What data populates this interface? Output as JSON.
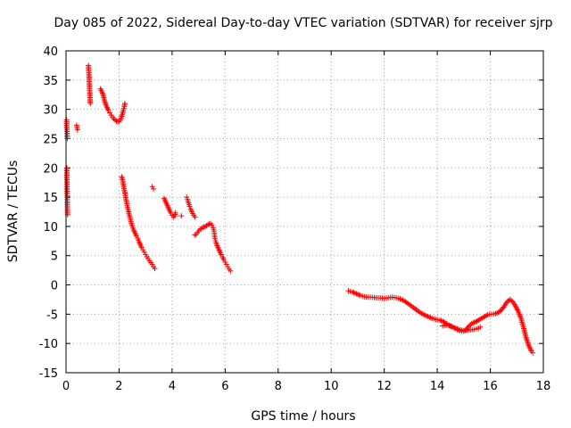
{
  "chart_data": {
    "type": "scatter",
    "title": "Day 085 of 2022, Sidereal Day-to-day VTEC variation (SDTVAR) for receiver sjrp",
    "xlabel": "GPS time / hours",
    "ylabel": "SDTVAR / TECUs",
    "xlim": [
      0,
      18
    ],
    "ylim": [
      -15,
      40
    ],
    "xticks": [
      0,
      2,
      4,
      6,
      8,
      10,
      12,
      14,
      16,
      18
    ],
    "yticks": [
      -15,
      -10,
      -5,
      0,
      5,
      10,
      15,
      20,
      25,
      30,
      35,
      40
    ],
    "grid": true,
    "marker": "plus",
    "marker_color": "#ff0000",
    "series": [
      {
        "name": "SDTVAR",
        "segments": [
          [
            [
              0.02,
              28.2
            ],
            [
              0.03,
              27.0
            ],
            [
              0.04,
              26.2
            ],
            [
              0.05,
              25.0
            ]
          ],
          [
            [
              0.03,
              20.0
            ],
            [
              0.03,
              18.5
            ],
            [
              0.04,
              17.0
            ],
            [
              0.04,
              15.5
            ],
            [
              0.05,
              14.3
            ],
            [
              0.05,
              13.2
            ],
            [
              0.06,
              12.0
            ]
          ],
          [
            [
              0.4,
              27.3
            ],
            [
              0.43,
              26.5
            ]
          ],
          [
            [
              0.85,
              37.5
            ],
            [
              0.86,
              36.5
            ],
            [
              0.87,
              35.5
            ],
            [
              0.88,
              34.5
            ],
            [
              0.89,
              33.5
            ],
            [
              0.9,
              32.5
            ],
            [
              0.91,
              31.5
            ],
            [
              0.92,
              31.0
            ]
          ],
          [
            [
              1.3,
              33.5
            ],
            [
              1.35,
              33.0
            ],
            [
              1.4,
              32.5
            ],
            [
              1.45,
              31.5
            ],
            [
              1.5,
              30.8
            ],
            [
              1.55,
              30.3
            ],
            [
              1.6,
              29.8
            ],
            [
              1.65,
              29.4
            ],
            [
              1.7,
              29.0
            ],
            [
              1.75,
              28.7
            ],
            [
              1.8,
              28.4
            ],
            [
              1.85,
              28.2
            ],
            [
              1.9,
              28.0
            ],
            [
              1.95,
              27.9
            ],
            [
              2.0,
              27.9
            ],
            [
              2.05,
              28.2
            ],
            [
              2.1,
              28.8
            ],
            [
              2.15,
              29.6
            ],
            [
              2.2,
              30.5
            ],
            [
              2.22,
              31.0
            ]
          ],
          [
            [
              2.1,
              18.5
            ],
            [
              2.13,
              18.0
            ],
            [
              2.16,
              17.2
            ],
            [
              2.2,
              16.2
            ],
            [
              2.24,
              15.2
            ],
            [
              2.28,
              14.2
            ],
            [
              2.32,
              13.3
            ],
            [
              2.36,
              12.5
            ],
            [
              2.4,
              11.7
            ],
            [
              2.45,
              10.8
            ],
            [
              2.5,
              10.0
            ],
            [
              2.55,
              9.4
            ],
            [
              2.6,
              8.9
            ],
            [
              2.65,
              8.4
            ],
            [
              2.7,
              8.0
            ],
            [
              2.75,
              7.4
            ],
            [
              2.8,
              6.9
            ],
            [
              2.85,
              6.4
            ],
            [
              2.9,
              6.0
            ],
            [
              2.95,
              5.6
            ],
            [
              3.0,
              5.2
            ],
            [
              3.05,
              4.8
            ],
            [
              3.1,
              4.5
            ],
            [
              3.15,
              4.1
            ],
            [
              3.2,
              3.8
            ],
            [
              3.25,
              3.5
            ],
            [
              3.3,
              3.1
            ],
            [
              3.35,
              2.8
            ]
          ],
          [
            [
              3.25,
              16.8
            ],
            [
              3.3,
              16.4
            ]
          ],
          [
            [
              3.7,
              14.8
            ],
            [
              3.75,
              14.3
            ],
            [
              3.8,
              13.8
            ],
            [
              3.85,
              13.3
            ],
            [
              3.9,
              12.8
            ],
            [
              3.95,
              12.3
            ],
            [
              4.0,
              11.9
            ],
            [
              4.05,
              11.6
            ],
            [
              4.1,
              11.8
            ],
            [
              4.12,
              12.3
            ]
          ],
          [
            [
              4.35,
              11.8
            ]
          ],
          [
            [
              4.55,
              15.0
            ],
            [
              4.58,
              14.6
            ],
            [
              4.62,
              14.0
            ],
            [
              4.66,
              13.4
            ],
            [
              4.7,
              13.0
            ],
            [
              4.74,
              12.5
            ],
            [
              4.78,
              12.2
            ],
            [
              4.82,
              11.9
            ],
            [
              4.86,
              11.6
            ]
          ],
          [
            [
              4.85,
              8.5
            ],
            [
              4.9,
              8.6
            ],
            [
              4.95,
              8.9
            ],
            [
              5.0,
              9.2
            ],
            [
              5.05,
              9.5
            ],
            [
              5.1,
              9.6
            ],
            [
              5.15,
              9.8
            ],
            [
              5.2,
              9.9
            ],
            [
              5.25,
              10.0
            ],
            [
              5.3,
              10.1
            ],
            [
              5.35,
              10.3
            ],
            [
              5.4,
              10.4
            ],
            [
              5.45,
              10.5
            ],
            [
              5.5,
              10.2
            ],
            [
              5.55,
              9.8
            ],
            [
              5.58,
              9.2
            ],
            [
              5.6,
              8.5
            ],
            [
              5.62,
              7.9
            ],
            [
              5.66,
              7.2
            ],
            [
              5.7,
              6.7
            ],
            [
              5.75,
              6.2
            ],
            [
              5.8,
              5.7
            ],
            [
              5.85,
              5.2
            ],
            [
              5.9,
              4.8
            ],
            [
              5.95,
              4.3
            ],
            [
              6.0,
              3.9
            ],
            [
              6.05,
              3.5
            ],
            [
              6.1,
              3.1
            ],
            [
              6.15,
              2.7
            ],
            [
              6.2,
              2.4
            ]
          ],
          [
            [
              10.65,
              -1.0
            ],
            [
              10.8,
              -1.2
            ],
            [
              10.95,
              -1.5
            ],
            [
              11.1,
              -1.8
            ],
            [
              11.25,
              -2.0
            ],
            [
              11.4,
              -2.1
            ],
            [
              11.55,
              -2.1
            ],
            [
              11.7,
              -2.2
            ],
            [
              11.85,
              -2.2
            ],
            [
              12.0,
              -2.3
            ],
            [
              12.15,
              -2.2
            ],
            [
              12.3,
              -2.1
            ],
            [
              12.45,
              -2.2
            ],
            [
              12.6,
              -2.4
            ],
            [
              12.75,
              -2.7
            ],
            [
              12.9,
              -3.2
            ],
            [
              13.05,
              -3.7
            ],
            [
              13.2,
              -4.2
            ],
            [
              13.35,
              -4.7
            ],
            [
              13.5,
              -5.1
            ],
            [
              13.65,
              -5.4
            ],
            [
              13.8,
              -5.7
            ],
            [
              13.95,
              -5.9
            ],
            [
              14.1,
              -6.0
            ],
            [
              14.25,
              -6.3
            ],
            [
              14.4,
              -6.8
            ],
            [
              14.55,
              -7.1
            ],
            [
              14.7,
              -7.5
            ],
            [
              14.85,
              -7.8
            ],
            [
              15.0,
              -7.9
            ],
            [
              15.1,
              -7.6
            ],
            [
              15.2,
              -7.0
            ],
            [
              15.3,
              -6.6
            ],
            [
              15.45,
              -6.3
            ],
            [
              15.6,
              -5.9
            ],
            [
              15.75,
              -5.5
            ],
            [
              15.9,
              -5.1
            ],
            [
              16.05,
              -5.0
            ],
            [
              16.2,
              -4.9
            ],
            [
              16.35,
              -4.6
            ],
            [
              16.5,
              -3.8
            ],
            [
              16.65,
              -2.8
            ],
            [
              16.75,
              -2.5
            ],
            [
              16.85,
              -2.9
            ],
            [
              16.95,
              -3.6
            ],
            [
              17.05,
              -4.5
            ],
            [
              17.15,
              -5.6
            ],
            [
              17.25,
              -7.2
            ],
            [
              17.35,
              -9.0
            ],
            [
              17.45,
              -10.4
            ],
            [
              17.55,
              -11.3
            ],
            [
              17.6,
              -11.6
            ]
          ],
          [
            [
              14.2,
              -7.0
            ],
            [
              14.4,
              -6.9
            ],
            [
              14.6,
              -7.2
            ],
            [
              14.8,
              -7.6
            ],
            [
              15.0,
              -7.8
            ],
            [
              15.2,
              -7.7
            ],
            [
              15.4,
              -7.6
            ],
            [
              15.55,
              -7.4
            ],
            [
              15.62,
              -7.2
            ]
          ]
        ]
      }
    ]
  }
}
